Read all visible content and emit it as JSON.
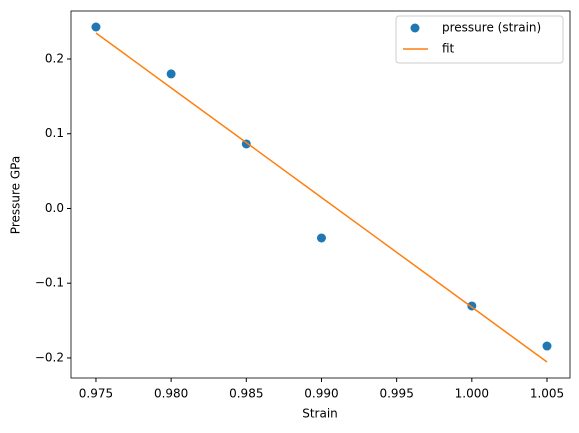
{
  "chart_data": {
    "type": "scatter",
    "xlabel": "Strain",
    "ylabel": "Pressure GPa",
    "xlim": [
      0.97334,
      1.00653
    ],
    "ylim": [
      -0.2268,
      0.2642
    ],
    "xticks": [
      0.975,
      {
        "value": 0.98,
        "label": "0.980"
      },
      0.985,
      {
        "value": 0.99,
        "label": "0.990"
      },
      0.995,
      {
        "value": 1,
        "label": "1.000"
      },
      1.005
    ],
    "yticks": [
      {
        "value": -0.2,
        "label": "−0.2"
      },
      {
        "value": -0.1,
        "label": "−0.1"
      },
      {
        "value": 0,
        "label": "0.0"
      },
      0.1,
      0.2
    ],
    "legend": "upper right",
    "series": [
      {
        "name": "pressure (strain)",
        "style": "marker",
        "color": "#1f77b4",
        "x": [
          0.975,
          0.98,
          0.985,
          0.99,
          1,
          1.005
        ],
        "values": [
          0.2428,
          0.18,
          0.0863,
          -0.0395,
          -0.1304,
          -0.184
        ]
      },
      {
        "name": "fit",
        "style": "line",
        "color": "#ff7f0e",
        "x": [
          0.975,
          0.98,
          0.985,
          0.99,
          1,
          1.005
        ],
        "values": [
          0.2348,
          0.1614,
          0.0881,
          0.0147,
          -0.132,
          -0.2054
        ]
      }
    ]
  }
}
